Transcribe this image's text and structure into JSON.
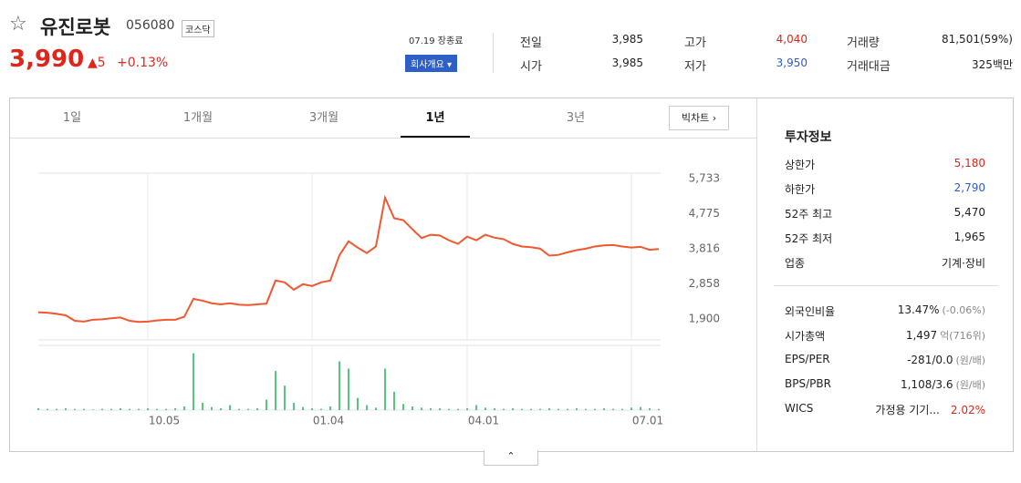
{
  "header": {
    "name": "유진로봇",
    "code": "056080",
    "market": "코스닥",
    "price": "3,990",
    "change": "5",
    "change_rate": "+0.13%",
    "date": "07.19 장종료",
    "company_button": "회사개요"
  },
  "summary": [
    {
      "label": "전일",
      "value": "3,985"
    },
    {
      "label": "고가",
      "value": "4,040"
    },
    {
      "label": "거래량",
      "value": "81,501(59%)"
    },
    {
      "label": "시가",
      "value": "3,985"
    },
    {
      "label": "저가",
      "value": "3,950"
    },
    {
      "label": "거래대금",
      "value": "325백만"
    }
  ],
  "tabs": [
    "1일",
    "1개월",
    "3개월",
    "1년",
    "3년"
  ],
  "big_chart": "빅차트",
  "chart_data": {
    "type": "line",
    "categories": [
      null,
      null,
      null,
      null,
      null,
      null,
      null,
      null,
      null,
      null,
      null,
      null,
      "10.05",
      null,
      null,
      null,
      null,
      null,
      null,
      null,
      null,
      null,
      null,
      null,
      null,
      null,
      null,
      null,
      null,
      null,
      "01.04",
      null,
      null,
      null,
      null,
      null,
      null,
      null,
      null,
      null,
      null,
      null,
      null,
      null,
      null,
      null,
      null,
      "04.01",
      null,
      null,
      null,
      null,
      null,
      null,
      null,
      null,
      null,
      null,
      null,
      null,
      null,
      null,
      null,
      null,
      null,
      "07.01",
      null,
      null,
      null
    ],
    "values": [
      2080,
      2070,
      2040,
      2000,
      1850,
      1830,
      1880,
      1890,
      1920,
      1940,
      1850,
      1820,
      1830,
      1860,
      1880,
      1880,
      1960,
      2450,
      2400,
      2330,
      2300,
      2330,
      2290,
      2280,
      2300,
      2320,
      2950,
      2900,
      2700,
      2850,
      2800,
      2900,
      2950,
      3640,
      4020,
      3850,
      3700,
      3880,
      5210,
      4650,
      4600,
      4350,
      4110,
      4200,
      4180,
      4050,
      3950,
      4150,
      4050,
      4200,
      4120,
      4080,
      3950,
      3880,
      3860,
      3820,
      3630,
      3650,
      3720,
      3780,
      3820,
      3880,
      3910,
      3920,
      3880,
      3850,
      3870,
      3790,
      3810
    ],
    "color": "#f0582f",
    "ylim": [
      1328,
      5882
    ],
    "yticks": [
      {
        "value": 5733,
        "label": "5,733"
      },
      {
        "value": 4775,
        "label": "4,775"
      },
      {
        "value": 3816,
        "label": "3,816"
      },
      {
        "value": 2858,
        "label": "2,858"
      },
      {
        "value": 1900,
        "label": "1,900"
      }
    ],
    "volume": [
      3,
      2,
      2,
      3,
      2,
      2,
      1,
      2,
      2,
      3,
      2,
      2,
      3,
      2,
      2,
      3,
      6,
      93,
      12,
      5,
      3,
      8,
      2,
      2,
      3,
      17,
      64,
      40,
      12,
      5,
      3,
      2,
      6,
      80,
      68,
      20,
      8,
      4,
      68,
      30,
      10,
      6,
      4,
      3,
      3,
      2,
      2,
      3,
      8,
      4,
      3,
      2,
      3,
      2,
      2,
      2,
      3,
      2,
      2,
      3,
      2,
      2,
      3,
      2,
      2,
      4,
      5,
      3,
      2
    ],
    "volume_color": "#52c87c",
    "volume_ylim": [
      0,
      100
    ]
  },
  "invest": {
    "title": "투자정보",
    "rows1": [
      {
        "label": "상한가",
        "value": "5,180"
      },
      {
        "label": "하한가",
        "value": "2,790"
      },
      {
        "label": "52주 최고",
        "value": "5,470"
      },
      {
        "label": "52주 최저",
        "value": "1,965"
      },
      {
        "label": "업종",
        "value": "기계·장비"
      }
    ],
    "rows2": [
      {
        "label": "외국인비율",
        "value": "13.47%",
        "sub": "(-0.06%)"
      },
      {
        "label": "시가총액",
        "value": "1,497",
        "sub": "억(716위)"
      },
      {
        "label": "EPS/PER",
        "value": "-281/0.0",
        "sub": "(원/배)"
      },
      {
        "label": "BPS/PBR",
        "value": "1,108/3.6",
        "sub": "(원/배)"
      },
      {
        "label": "WICS",
        "value": "가정용 기기...",
        "sub": "2.02%"
      }
    ]
  }
}
